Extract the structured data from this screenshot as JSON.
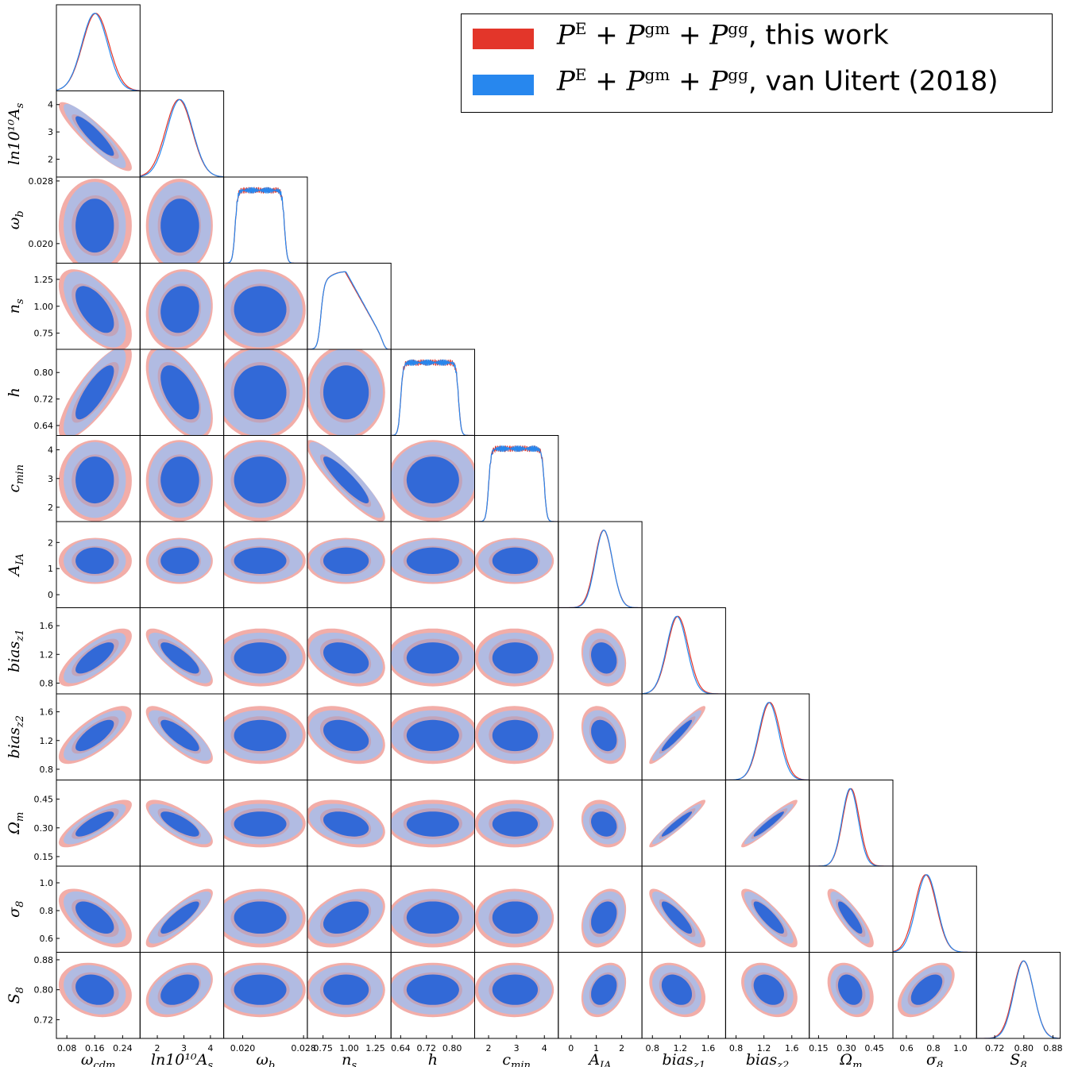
{
  "chart_data": {
    "type": "corner",
    "parameters": [
      {
        "label": "ω_cdm",
        "sym": "ω",
        "sub": "cdm",
        "range": [
          0.05,
          0.29
        ],
        "ticks": [
          0.08,
          0.16,
          0.24
        ],
        "tick_labels": [
          "0.08",
          "0.16",
          "0.24"
        ],
        "mean": 0.16,
        "sd": 0.038
      },
      {
        "label": "ln10^10 A_s",
        "sym": "ln10¹⁰A",
        "sub": "s",
        "range": [
          1.35,
          4.5
        ],
        "ticks": [
          2,
          3,
          4
        ],
        "tick_labels": [
          "2",
          "3",
          "4"
        ],
        "mean": 2.85,
        "sd": 0.5
      },
      {
        "label": "ω_b",
        "sym": "ω",
        "sub": "b",
        "range": [
          0.0175,
          0.0285
        ],
        "ticks": [
          0.02,
          0.028
        ],
        "tick_labels": [
          "0.020",
          "0.028"
        ],
        "mean": 0.0223,
        "sd": 0.0019,
        "flat": [
          0.019,
          0.0255
        ]
      },
      {
        "label": "n_s",
        "sym": "n",
        "sub": "s",
        "range": [
          0.6,
          1.4
        ],
        "ticks": [
          0.75,
          1.0,
          1.25
        ],
        "tick_labels": [
          "0.75",
          "1.00",
          "1.25"
        ],
        "mean": 0.97,
        "sd": 0.15
      },
      {
        "label": "h",
        "sym": "h",
        "sub": "",
        "range": [
          0.61,
          0.87
        ],
        "ticks": [
          0.64,
          0.72,
          0.8
        ],
        "tick_labels": [
          "0.64",
          "0.72",
          "0.80"
        ],
        "mean": 0.74,
        "sd": 0.045,
        "flat": [
          0.64,
          0.82
        ]
      },
      {
        "label": "c_min",
        "sym": "c",
        "sub": "min",
        "range": [
          1.5,
          4.5
        ],
        "ticks": [
          2,
          3,
          4
        ],
        "tick_labels": [
          "2",
          "3",
          "4"
        ],
        "mean": 2.95,
        "sd": 0.45,
        "flat": [
          2.0,
          4.0
        ]
      },
      {
        "label": "A_IA",
        "sym": "A",
        "sub": "IA",
        "range": [
          -0.5,
          2.8
        ],
        "ticks": [
          0,
          1,
          2
        ],
        "tick_labels": [
          "0",
          "1",
          "2"
        ],
        "mean": 1.3,
        "sd": 0.35
      },
      {
        "label": "bias_z1",
        "sym": "bias",
        "sub": "z1",
        "range": [
          0.65,
          1.85
        ],
        "ticks": [
          0.8,
          1.2,
          1.6
        ],
        "tick_labels": [
          "0.8",
          "1.2",
          "1.6"
        ],
        "mean": 1.15,
        "sd": 0.15
      },
      {
        "label": "bias_z2",
        "sym": "bias",
        "sub": "z2",
        "range": [
          0.65,
          1.85
        ],
        "ticks": [
          0.8,
          1.2,
          1.6
        ],
        "tick_labels": [
          "0.8",
          "1.2",
          "1.6"
        ],
        "mean": 1.27,
        "sd": 0.15
      },
      {
        "label": "Ω_m",
        "sym": "Ω",
        "sub": "m",
        "range": [
          0.1,
          0.55
        ],
        "ticks": [
          0.15,
          0.3,
          0.45
        ],
        "tick_labels": [
          "0.15",
          "0.30",
          "0.45"
        ],
        "mean": 0.32,
        "sd": 0.045
      },
      {
        "label": "σ_8",
        "sym": "σ",
        "sub": "8",
        "range": [
          0.5,
          1.12
        ],
        "ticks": [
          0.6,
          0.8,
          1.0
        ],
        "tick_labels": [
          "0.6",
          "0.8",
          "1.0"
        ],
        "mean": 0.75,
        "sd": 0.08
      },
      {
        "label": "S_8",
        "sym": "S",
        "sub": "8",
        "range": [
          0.67,
          0.9
        ],
        "ticks": [
          0.72,
          0.8,
          0.88
        ],
        "tick_labels": [
          "0.72",
          "0.80",
          "0.88"
        ],
        "mean": 0.8,
        "sd": 0.028
      }
    ],
    "series": [
      {
        "name": "P^E + P^gm + P^gg, this work",
        "color": "#e3362a",
        "fill_outer": "#f1a9a3",
        "fill_inner": "#e07c74"
      },
      {
        "name": "P^E + P^gm + P^gg, van Uitert (2018)",
        "color": "#2787ee",
        "fill_outer": "#a6bdec",
        "fill_inner": "#2a66d8"
      }
    ],
    "correlations_note": "pairwise correlation estimates read from contour orientation",
    "correlations": [
      [
        0,
        1,
        -0.9
      ],
      [
        0,
        3,
        -0.6
      ],
      [
        0,
        4,
        0.8
      ],
      [
        0,
        7,
        0.75
      ],
      [
        0,
        8,
        0.75
      ],
      [
        0,
        9,
        0.8
      ],
      [
        0,
        10,
        -0.6
      ],
      [
        0,
        11,
        -0.2
      ],
      [
        1,
        3,
        0.1
      ],
      [
        1,
        4,
        -0.55
      ],
      [
        1,
        7,
        -0.8
      ],
      [
        1,
        8,
        -0.8
      ],
      [
        1,
        9,
        -0.75
      ],
      [
        1,
        10,
        0.85
      ],
      [
        1,
        11,
        0.4
      ],
      [
        3,
        5,
        -0.9
      ],
      [
        3,
        7,
        -0.35
      ],
      [
        3,
        8,
        -0.35
      ],
      [
        3,
        9,
        -0.35
      ],
      [
        3,
        10,
        0.4
      ],
      [
        6,
        7,
        -0.2
      ],
      [
        6,
        8,
        -0.3
      ],
      [
        6,
        9,
        -0.2
      ],
      [
        6,
        10,
        0.3
      ],
      [
        6,
        11,
        0.3
      ],
      [
        7,
        8,
        0.95
      ],
      [
        7,
        9,
        0.95
      ],
      [
        7,
        10,
        -0.85
      ],
      [
        7,
        11,
        -0.3
      ],
      [
        8,
        9,
        0.95
      ],
      [
        8,
        10,
        -0.85
      ],
      [
        8,
        11,
        -0.3
      ],
      [
        9,
        10,
        -0.85
      ],
      [
        9,
        11,
        -0.3
      ],
      [
        10,
        11,
        0.55
      ]
    ]
  },
  "legend": {
    "entries": [
      {
        "math": "P",
        "sup1": "E",
        "sup2": "gm",
        "sup3": "gg",
        "suffix": ", this work",
        "color": "#e3362a"
      },
      {
        "math": "P",
        "sup1": "E",
        "sup2": "gm",
        "sup3": "gg",
        "suffix": ", van Uitert (2018)",
        "color": "#2787ee"
      }
    ]
  }
}
